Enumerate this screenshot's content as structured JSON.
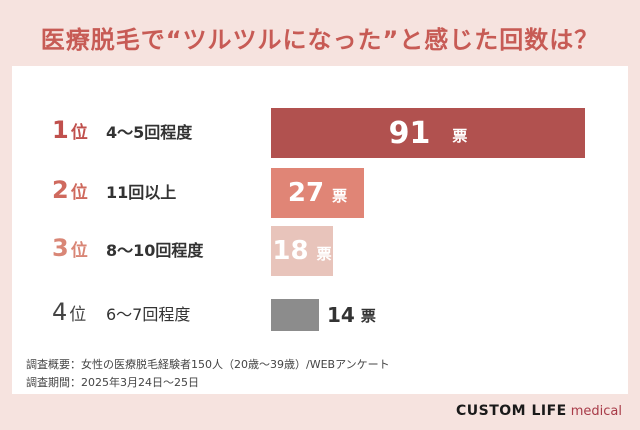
{
  "title": "医療脱毛で“ツルツルになった”と感じた回数は？",
  "colors": {
    "background": "#f6e3df",
    "panel": "#ffffff",
    "title": "#c75b55"
  },
  "chart_data": {
    "type": "bar",
    "orientation": "horizontal",
    "categories": [
      "4～5回程度",
      "11回以上",
      "8～10回程度",
      "6～7回程度"
    ],
    "ranks": [
      "1",
      "2",
      "3",
      "4"
    ],
    "rank_suffix": "位",
    "values": [
      91,
      27,
      18,
      14
    ],
    "unit": "票",
    "colors": [
      "#b1514f",
      "#e08576",
      "#e8c4bb",
      "#8c8c8c"
    ],
    "rank_colors": [
      "#c0504d",
      "#cf6a5e",
      "#d98676",
      "#444444"
    ]
  },
  "notes": {
    "overview": "調査概要：女性の医療脱毛経験者150人（20歳～39歳）/WEBアンケート",
    "period": "調査期間：2025年3月24日～25日"
  },
  "brand": {
    "main": "CUSTOM LIFE",
    "sub": "medical"
  }
}
